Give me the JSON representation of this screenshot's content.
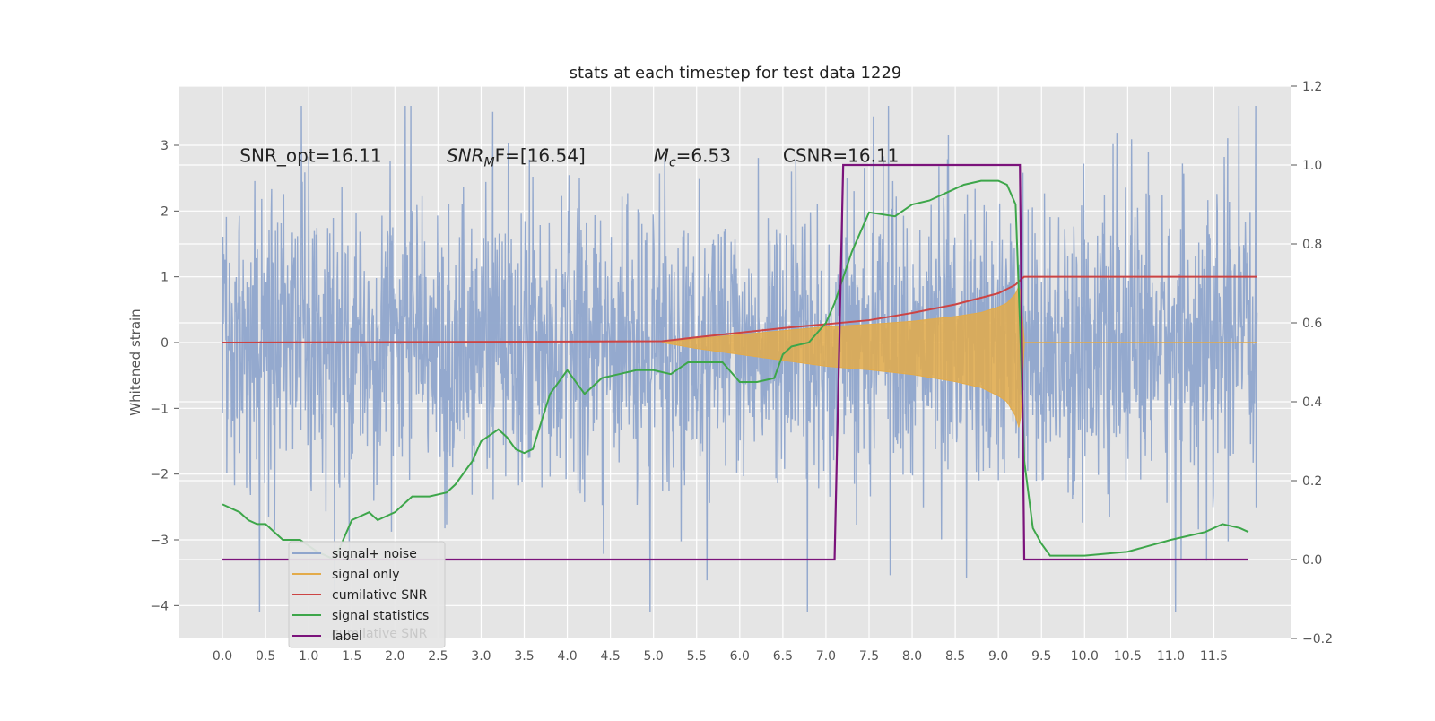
{
  "chart_data": {
    "type": "line",
    "title": "stats at each timestep for test data 1229",
    "ylabel": "Whitened strain",
    "y2label": "",
    "xlabel": "",
    "xlim": [
      -0.5,
      12.4
    ],
    "ylim": [
      -4.5,
      3.9
    ],
    "y2lim": [
      -0.2,
      1.2
    ],
    "x_ticks": [
      "0.0",
      "0.5",
      "1.0",
      "1.5",
      "2.0",
      "2.5",
      "3.0",
      "3.5",
      "4.0",
      "4.5",
      "5.0",
      "5.5",
      "6.0",
      "6.5",
      "7.0",
      "7.5",
      "8.0",
      "8.5",
      "9.0",
      "9.5",
      "10.0",
      "10.5",
      "11.0",
      "11.5"
    ],
    "y_ticks": [
      "3",
      "2",
      "1",
      "0",
      "−1",
      "−2",
      "−3",
      "−4"
    ],
    "y_tick_values": [
      3,
      2,
      1,
      0,
      -1,
      -2,
      -3,
      -4
    ],
    "y2_ticks": [
      "1.2",
      "1.0",
      "0.8",
      "0.6",
      "0.4",
      "0.2",
      "0.0",
      "−0.2"
    ],
    "y2_tick_values": [
      1.2,
      1.0,
      0.8,
      0.6,
      0.4,
      0.2,
      0.0,
      -0.2
    ],
    "grid": true,
    "legend_position": "lower-left",
    "annotations": [
      {
        "prefix": "SNR_opt=16.11",
        "main": "",
        "sub": "",
        "rest": "",
        "x": 0.2
      },
      {
        "prefix": "",
        "main": "SNR",
        "sub": "M",
        "rest": "F=[16.54]",
        "x": 2.6
      },
      {
        "prefix": "",
        "main": "M",
        "sub": "c",
        "rest": "=6.53",
        "x": 5.0
      },
      {
        "prefix": "CSNR=16.11",
        "main": "",
        "sub": "",
        "rest": "",
        "x": 6.5
      }
    ],
    "annotation_y": 2.75,
    "colors": {
      "noise": "#8fa5cc",
      "signal": "#e3ab4a",
      "snr": "#cc4444",
      "stat": "#3da64a",
      "label": "#7b137b",
      "plot_bg": "#e5e5e5",
      "grid": "#ffffff"
    },
    "series": [
      {
        "name": "signal+ noise",
        "axis": "left",
        "style": "noise",
        "x_range": [
          0.0,
          12.0
        ],
        "amplitude": 1.6
      },
      {
        "name": "signal only",
        "axis": "left",
        "style": "chirp",
        "x_range": [
          5.1,
          9.3
        ],
        "x": [
          5.1,
          5.5,
          6.0,
          6.5,
          7.0,
          7.5,
          8.0,
          8.5,
          8.8,
          9.0,
          9.1,
          9.2,
          9.25,
          9.3
        ],
        "envelope": [
          0.0,
          0.05,
          0.1,
          0.15,
          0.2,
          0.23,
          0.27,
          0.33,
          0.38,
          0.45,
          0.5,
          0.62,
          0.75,
          0.02
        ]
      },
      {
        "name": "cumilative SNR",
        "axis": "left",
        "x": [
          0.0,
          5.1,
          5.5,
          6.0,
          6.5,
          7.0,
          7.5,
          8.0,
          8.5,
          9.0,
          9.2,
          9.27,
          9.3,
          12.0
        ],
        "y": [
          0.0,
          0.02,
          0.08,
          0.15,
          0.22,
          0.28,
          0.34,
          0.45,
          0.58,
          0.75,
          0.88,
          0.97,
          1.0,
          1.0
        ]
      },
      {
        "name": "signal statistics",
        "axis": "right",
        "x": [
          0.0,
          0.2,
          0.3,
          0.4,
          0.5,
          0.6,
          0.7,
          0.9,
          1.1,
          1.3,
          1.5,
          1.7,
          1.8,
          2.0,
          2.2,
          2.4,
          2.6,
          2.7,
          2.9,
          3.0,
          3.2,
          3.3,
          3.4,
          3.5,
          3.6,
          3.8,
          4.0,
          4.2,
          4.4,
          4.6,
          4.8,
          5.0,
          5.2,
          5.4,
          5.6,
          5.8,
          6.0,
          6.2,
          6.4,
          6.5,
          6.6,
          6.8,
          7.0,
          7.1,
          7.3,
          7.5,
          7.8,
          8.0,
          8.2,
          8.4,
          8.6,
          8.8,
          9.0,
          9.1,
          9.2,
          9.25,
          9.3,
          9.4,
          9.5,
          9.6,
          9.8,
          10.0,
          10.5,
          11.0,
          11.2,
          11.4,
          11.6,
          11.8,
          11.9
        ],
        "y": [
          0.14,
          0.12,
          0.1,
          0.09,
          0.09,
          0.07,
          0.05,
          0.05,
          0.02,
          0.0,
          0.1,
          0.12,
          0.1,
          0.12,
          0.16,
          0.16,
          0.17,
          0.19,
          0.25,
          0.3,
          0.33,
          0.31,
          0.28,
          0.27,
          0.28,
          0.42,
          0.48,
          0.42,
          0.46,
          0.47,
          0.48,
          0.48,
          0.47,
          0.5,
          0.5,
          0.5,
          0.45,
          0.45,
          0.46,
          0.52,
          0.54,
          0.55,
          0.6,
          0.65,
          0.78,
          0.88,
          0.87,
          0.9,
          0.91,
          0.93,
          0.95,
          0.96,
          0.96,
          0.95,
          0.9,
          0.6,
          0.25,
          0.08,
          0.04,
          0.01,
          0.01,
          0.01,
          0.02,
          0.05,
          0.06,
          0.07,
          0.09,
          0.08,
          0.07
        ]
      },
      {
        "name": "label",
        "axis": "right",
        "x": [
          0.0,
          7.1,
          7.2,
          9.25,
          9.3,
          11.9
        ],
        "y": [
          0.0,
          0.0,
          1.0,
          1.0,
          0.0,
          0.0
        ]
      }
    ],
    "legend_entries": [
      "signal+ noise",
      "signal only",
      "cumilative SNR",
      "signal statistics",
      "label"
    ],
    "legend_ghost_text": "cumilative SNR"
  }
}
